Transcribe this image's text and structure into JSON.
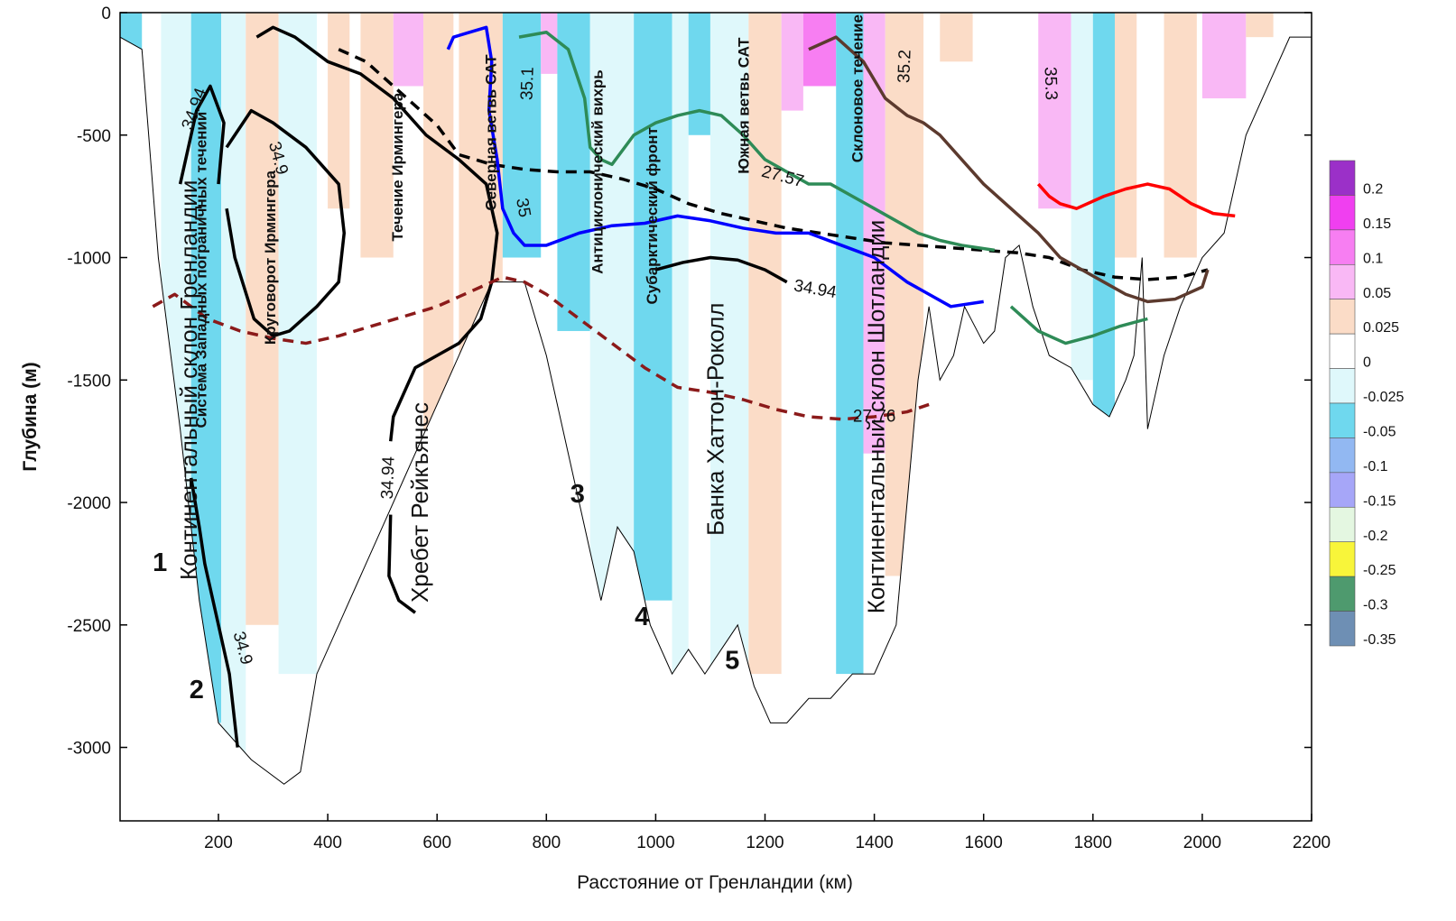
{
  "chart_data": {
    "type": "heatmap",
    "title": "",
    "xlabel": "Расстояние от Гренландии (км)",
    "ylabel": "Глубина (м)",
    "xlim": [
      20,
      2200
    ],
    "ylim": [
      -3300,
      0
    ],
    "x_ticks": [
      200,
      400,
      600,
      800,
      1000,
      1200,
      1400,
      1600,
      1800,
      2000,
      2200
    ],
    "y_ticks": [
      0,
      -500,
      -1000,
      -1500,
      -2000,
      -2500,
      -3000
    ],
    "grid": false,
    "legend_placement": "right",
    "colorbar": {
      "levels": [
        "0.2",
        "0.15",
        "0.1",
        "0.05",
        "0.025",
        "0",
        "-0.025",
        "-0.05",
        "-0.1",
        "-0.15",
        "-0.2",
        "-0.25",
        "-0.3",
        "-0.35"
      ],
      "colors": [
        "#9b30c8",
        "#f03ff0",
        "#f77ef2",
        "#f9b8f5",
        "#fbdcc7",
        "#ffffff",
        "#dff8fb",
        "#6fd8ee",
        "#92b8f2",
        "#a6a6f8",
        "#e4f7e1",
        "#f8f53a",
        "#4e9a6e",
        "#6e8fb4"
      ]
    },
    "band_colors": {
      "pos1": "#fbdcc7",
      "pos2": "#f9b8f5",
      "pos3": "#f77ef2",
      "pos4": "#f03ff0",
      "neg1": "#dff8fb",
      "neg2": "#6fd8ee",
      "neg3": "#92b8f2",
      "neg4": "#a6a6f8"
    },
    "anomaly_bands": [
      {
        "x": [
          20,
          60
        ],
        "level": "neg2",
        "depth": 2000
      },
      {
        "x": [
          95,
          150
        ],
        "level": "neg1",
        "depth": 2900
      },
      {
        "x": [
          150,
          205
        ],
        "level": "neg2",
        "depth": 2900
      },
      {
        "x": [
          205,
          250
        ],
        "level": "neg1",
        "depth": 3050
      },
      {
        "x": [
          250,
          310
        ],
        "level": "pos1",
        "depth": 2500
      },
      {
        "x": [
          310,
          380
        ],
        "level": "neg1",
        "depth": 2700
      },
      {
        "x": [
          400,
          440
        ],
        "level": "pos1",
        "depth": 800
      },
      {
        "x": [
          460,
          520
        ],
        "level": "pos1",
        "depth": 1000
      },
      {
        "x": [
          520,
          575
        ],
        "level": "pos2",
        "depth": 300
      },
      {
        "x": [
          575,
          630
        ],
        "level": "pos1",
        "depth": 1700
      },
      {
        "x": [
          640,
          720
        ],
        "level": "pos1",
        "depth": 1800
      },
      {
        "x": [
          720,
          790
        ],
        "level": "neg2",
        "depth": 1000
      },
      {
        "x": [
          790,
          820
        ],
        "level": "pos2",
        "depth": 250
      },
      {
        "x": [
          820,
          880
        ],
        "level": "neg2",
        "depth": 1300
      },
      {
        "x": [
          880,
          960
        ],
        "level": "neg1",
        "depth": 2600
      },
      {
        "x": [
          960,
          1030
        ],
        "level": "neg2",
        "depth": 2400
      },
      {
        "x": [
          1030,
          1060
        ],
        "level": "neg1",
        "depth": 2700
      },
      {
        "x": [
          1060,
          1100
        ],
        "level": "neg2",
        "depth": 500
      },
      {
        "x": [
          1100,
          1170
        ],
        "level": "neg1",
        "depth": 2800
      },
      {
        "x": [
          1170,
          1230
        ],
        "level": "pos1",
        "depth": 2700
      },
      {
        "x": [
          1230,
          1270
        ],
        "level": "pos2",
        "depth": 400
      },
      {
        "x": [
          1270,
          1330
        ],
        "level": "pos3",
        "depth": 300
      },
      {
        "x": [
          1330,
          1380
        ],
        "level": "neg2",
        "depth": 2700
      },
      {
        "x": [
          1380,
          1420
        ],
        "level": "pos2",
        "depth": 1800
      },
      {
        "x": [
          1420,
          1490
        ],
        "level": "pos1",
        "depth": 2300
      },
      {
        "x": [
          1520,
          1580
        ],
        "level": "pos1",
        "depth": 200
      },
      {
        "x": [
          1700,
          1760
        ],
        "level": "pos2",
        "depth": 800
      },
      {
        "x": [
          1760,
          1800
        ],
        "level": "neg1",
        "depth": 1500
      },
      {
        "x": [
          1800,
          1840
        ],
        "level": "neg2",
        "depth": 1650
      },
      {
        "x": [
          1840,
          1880
        ],
        "level": "pos1",
        "depth": 1000
      },
      {
        "x": [
          1930,
          1990
        ],
        "level": "pos1",
        "depth": 1000
      },
      {
        "x": [
          2000,
          2080
        ],
        "level": "pos2",
        "depth": 350
      },
      {
        "x": [
          2080,
          2130
        ],
        "level": "pos1",
        "depth": 100
      }
    ],
    "bottom_profile": {
      "x": [
        20,
        60,
        90,
        130,
        165,
        200,
        260,
        320,
        350,
        380,
        420,
        460,
        500,
        540,
        580,
        620,
        660,
        700,
        730,
        760,
        800,
        840,
        880,
        900,
        930,
        960,
        990,
        1030,
        1060,
        1090,
        1120,
        1150,
        1180,
        1210,
        1240,
        1280,
        1320,
        1360,
        1400,
        1440,
        1480,
        1500,
        1520,
        1545,
        1565,
        1600,
        1620,
        1640,
        1665,
        1690,
        1720,
        1760,
        1800,
        1830,
        1860,
        1875,
        1890,
        1900,
        1930,
        1960,
        2000,
        2040,
        2080,
        2120,
        2160,
        2200
      ],
      "y": [
        -100,
        -150,
        -1000,
        -1700,
        -2400,
        -2900,
        -3050,
        -3150,
        -3100,
        -2700,
        -2500,
        -2300,
        -2100,
        -1900,
        -1700,
        -1500,
        -1300,
        -1100,
        -1100,
        -1100,
        -1400,
        -1800,
        -2200,
        -2400,
        -2100,
        -2200,
        -2500,
        -2700,
        -2600,
        -2700,
        -2600,
        -2500,
        -2750,
        -2900,
        -2900,
        -2800,
        -2800,
        -2700,
        -2700,
        -2500,
        -1500,
        -1200,
        -1500,
        -1400,
        -1200,
        -1350,
        -1300,
        -1000,
        -950,
        -1200,
        -1400,
        -1450,
        -1600,
        -1650,
        -1500,
        -1400,
        -1000,
        -1700,
        -1400,
        -1200,
        -1000,
        -900,
        -500,
        -300,
        -100,
        -100
      ]
    },
    "series": [
      {
        "color": "#000000",
        "style": "solid",
        "x": [
          130,
          160,
          185,
          210,
          200
        ],
        "y": [
          -700,
          -400,
          -300,
          -450,
          -700
        ]
      },
      {
        "color": "#000000",
        "style": "solid",
        "x": [
          150,
          165,
          175,
          200,
          220,
          235
        ],
        "y": [
          -1900,
          -2100,
          -2250,
          -2500,
          -2700,
          -3000
        ]
      },
      {
        "color": "#000000",
        "style": "solid",
        "x": [
          215,
          260,
          300,
          360,
          420,
          430,
          420,
          380,
          330,
          300,
          265,
          230,
          215
        ],
        "y": [
          -550,
          -400,
          -450,
          -550,
          -700,
          -900,
          -1100,
          -1200,
          -1300,
          -1320,
          -1250,
          -1000,
          -800
        ]
      },
      {
        "color": "#000000",
        "style": "solid",
        "x": [
          270,
          300,
          340,
          400,
          460,
          520,
          580,
          640,
          690,
          710,
          700,
          680,
          640,
          600,
          560,
          540,
          520,
          515
        ],
        "y": [
          -100,
          -60,
          -100,
          -200,
          -250,
          -350,
          -500,
          -600,
          -700,
          -900,
          -1100,
          -1250,
          -1350,
          -1400,
          -1450,
          -1550,
          -1650,
          -1750
        ]
      },
      {
        "color": "#000000",
        "style": "solid",
        "x": [
          515,
          512,
          530,
          560
        ],
        "y": [
          -2050,
          -2300,
          -2400,
          -2450
        ]
      },
      {
        "color": "#000000",
        "style": "dashed",
        "x": [
          420,
          470,
          520,
          560,
          600,
          620,
          640,
          700,
          760,
          820,
          880,
          940,
          1000,
          1060,
          1120,
          1180,
          1240,
          1300,
          1360,
          1420,
          1480,
          1540,
          1600,
          1660,
          1720,
          1780,
          1840,
          1900,
          1960,
          2010
        ],
        "y": [
          -150,
          -200,
          -300,
          -380,
          -460,
          -520,
          -580,
          -620,
          -640,
          -650,
          -650,
          -680,
          -720,
          -780,
          -820,
          -850,
          -880,
          -900,
          -920,
          -940,
          -950,
          -960,
          -970,
          -980,
          -1000,
          -1050,
          -1080,
          -1090,
          -1080,
          -1050
        ]
      },
      {
        "color": "#8b1a1a",
        "style": "dashed",
        "x": [
          80,
          120,
          180,
          240,
          300,
          360,
          420,
          480,
          540,
          600,
          640,
          680,
          720,
          760,
          800,
          860,
          920,
          980,
          1040,
          1100,
          1160,
          1220,
          1280,
          1340,
          1400,
          1460,
          1500
        ],
        "y": [
          -1200,
          -1150,
          -1250,
          -1300,
          -1330,
          -1350,
          -1320,
          -1280,
          -1240,
          -1200,
          -1160,
          -1120,
          -1080,
          -1100,
          -1150,
          -1250,
          -1350,
          -1450,
          -1530,
          -1550,
          -1580,
          -1620,
          -1650,
          -1660,
          -1650,
          -1630,
          -1600
        ]
      },
      {
        "color": "#0000ff",
        "style": "solid",
        "x": [
          620,
          630,
          660,
          690,
          700,
          695,
          710,
          720,
          740,
          760,
          800,
          860,
          920,
          980,
          1040,
          1100,
          1160,
          1220,
          1280,
          1340,
          1400,
          1460,
          1500,
          1540,
          1600
        ],
        "y": [
          -150,
          -100,
          -80,
          -60,
          -200,
          -400,
          -600,
          -800,
          -900,
          -950,
          -950,
          -900,
          -870,
          -860,
          -830,
          -850,
          -880,
          -900,
          -900,
          -950,
          -1000,
          -1100,
          -1150,
          -1200,
          -1180
        ]
      },
      {
        "color": "#2e8b57",
        "style": "solid",
        "x": [
          750,
          800,
          840,
          870,
          880,
          900,
          920,
          960,
          1000,
          1040,
          1080,
          1120,
          1160,
          1200,
          1240,
          1280,
          1320,
          1360,
          1400,
          1440,
          1480,
          1520,
          1560,
          1620
        ],
        "y": [
          -100,
          -80,
          -150,
          -350,
          -550,
          -600,
          -620,
          -500,
          -450,
          -420,
          -400,
          -420,
          -500,
          -600,
          -650,
          -700,
          -700,
          -750,
          -800,
          -850,
          -900,
          -930,
          -950,
          -970
        ]
      },
      {
        "color": "#5c3a2e",
        "style": "solid",
        "x": [
          1280,
          1330,
          1380,
          1420,
          1460,
          1490,
          1520,
          1560,
          1600,
          1650,
          1700,
          1740,
          1780,
          1820,
          1860,
          1900,
          1950,
          2000,
          2010
        ],
        "y": [
          -150,
          -100,
          -200,
          -350,
          -420,
          -450,
          -500,
          -600,
          -700,
          -800,
          -900,
          -1000,
          -1050,
          -1100,
          -1150,
          -1180,
          -1170,
          -1120,
          -1050
        ]
      },
      {
        "color": "#ff0000",
        "style": "solid",
        "x": [
          1700,
          1720,
          1740,
          1770,
          1820,
          1860,
          1900,
          1940,
          1980,
          2020,
          2060
        ],
        "y": [
          -700,
          -750,
          -780,
          -800,
          -750,
          -720,
          -700,
          -720,
          -780,
          -820,
          -830
        ]
      },
      {
        "color": "#2e8b57",
        "style": "solid",
        "x": [
          1650,
          1700,
          1750,
          1800,
          1850,
          1900
        ],
        "y": [
          -1200,
          -1300,
          -1350,
          -1320,
          -1280,
          -1250
        ]
      },
      {
        "color": "#000000",
        "style": "solid",
        "x": [
          1000,
          1050,
          1100,
          1150,
          1200,
          1240
        ],
        "y": [
          -1050,
          -1020,
          -1000,
          -1010,
          -1050,
          -1100
        ]
      }
    ],
    "isoline_labels": [
      {
        "text": "34.94",
        "x": 165,
        "y": -400,
        "rotate": -70
      },
      {
        "text": "34.9",
        "x": 300,
        "y": -600,
        "rotate": 75
      },
      {
        "text": "34.94",
        "x": 520,
        "y": -1900,
        "rotate": -88
      },
      {
        "text": "34.9",
        "x": 235,
        "y": -2600,
        "rotate": 75
      },
      {
        "text": "35.1",
        "x": 775,
        "y": -290,
        "rotate": -88
      },
      {
        "text": "35",
        "x": 748,
        "y": -800,
        "rotate": 80
      },
      {
        "text": "27.57",
        "x": 1230,
        "y": -690,
        "rotate": 15
      },
      {
        "text": "34.94",
        "x": 1290,
        "y": -1150,
        "rotate": 10
      },
      {
        "text": "27.76",
        "x": 1400,
        "y": -1670,
        "rotate": 0
      },
      {
        "text": "35.2",
        "x": 1465,
        "y": -220,
        "rotate": -88
      },
      {
        "text": "35.3",
        "x": 1713,
        "y": -290,
        "rotate": 88
      }
    ],
    "current_labels": [
      {
        "text": "Система Западных пограничных течений",
        "x": 178,
        "y": -1050,
        "rotate": -90
      },
      {
        "text": "Круговорот Ирмингера",
        "x": 304,
        "y": -1000,
        "rotate": -90
      },
      {
        "text": "Течение Ирмингера",
        "x": 537,
        "y": -630,
        "rotate": -90
      },
      {
        "text": "Северная ветвь САТ",
        "x": 708,
        "y": -490,
        "rotate": -90
      },
      {
        "text": "Антициклонический вихрь",
        "x": 903,
        "y": -650,
        "rotate": -90
      },
      {
        "text": "Субарктический фронт",
        "x": 1003,
        "y": -830,
        "rotate": -90
      },
      {
        "text": "Южная ветвь САТ",
        "x": 1170,
        "y": -380,
        "rotate": -90
      },
      {
        "text": "Склоновое течение",
        "x": 1378,
        "y": -310,
        "rotate": -90
      }
    ],
    "feature_labels": [
      {
        "text": "Континентальный склон Гренландии",
        "x": 160,
        "y": -1500,
        "rotate": -90
      },
      {
        "text": "Хребет Рейкъянес",
        "x": 583,
        "y": -2000,
        "rotate": -90
      },
      {
        "text": "Банка Хаттон-Роколл",
        "x": 1124,
        "y": -1660,
        "rotate": -90
      },
      {
        "text": "Континентальный склон Шотландии",
        "x": 1418,
        "y": -1650,
        "rotate": -90
      }
    ],
    "station_labels": [
      {
        "text": "1",
        "x": 93,
        "y": -2280
      },
      {
        "text": "2",
        "x": 160,
        "y": -2800
      },
      {
        "text": "3",
        "x": 857,
        "y": -2000
      },
      {
        "text": "4",
        "x": 975,
        "y": -2500
      },
      {
        "text": "5",
        "x": 1140,
        "y": -2680
      }
    ]
  }
}
